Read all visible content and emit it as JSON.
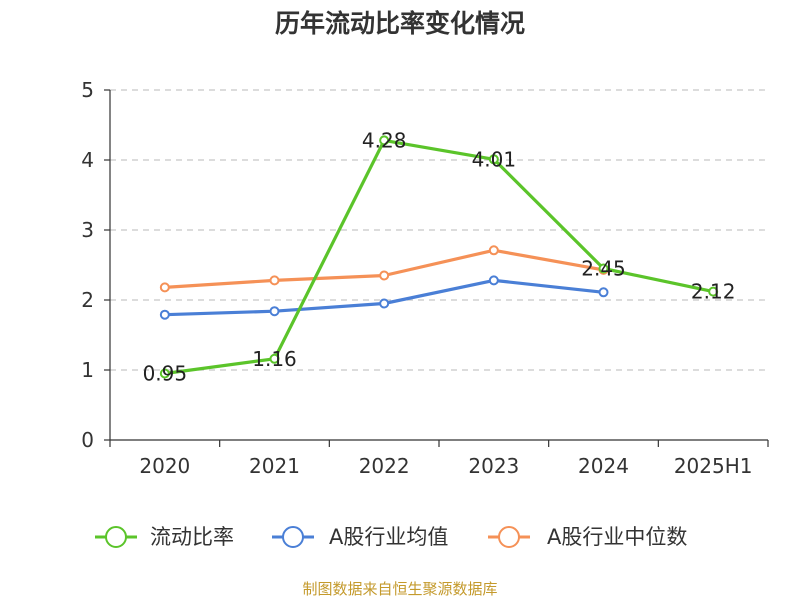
{
  "chart_data": {
    "type": "line",
    "title": "历年流动比率变化情况",
    "categories": [
      "2020",
      "2021",
      "2022",
      "2023",
      "2024",
      "2025H1"
    ],
    "ylim": [
      0,
      5
    ],
    "yticks": [
      "0",
      "1",
      "2",
      "3",
      "4",
      "5"
    ],
    "grid": true,
    "legend_position": "bottom",
    "series": [
      {
        "name": "流动比率",
        "color": "#5bc42a",
        "values": [
          0.95,
          1.16,
          4.28,
          4.01,
          2.45,
          2.12
        ],
        "labels": [
          "0.95",
          "1.16",
          "4.28",
          "4.01",
          "2.45",
          "2.12"
        ]
      },
      {
        "name": "A股行业均值",
        "color": "#4a7fd6",
        "values": [
          1.79,
          1.84,
          1.95,
          2.28,
          2.11,
          null
        ]
      },
      {
        "name": "A股行业中位数",
        "color": "#f59157",
        "values": [
          2.18,
          2.28,
          2.35,
          2.71,
          2.43,
          null
        ]
      }
    ]
  },
  "footer": {
    "source": "制图数据来自恒生聚源数据库"
  }
}
